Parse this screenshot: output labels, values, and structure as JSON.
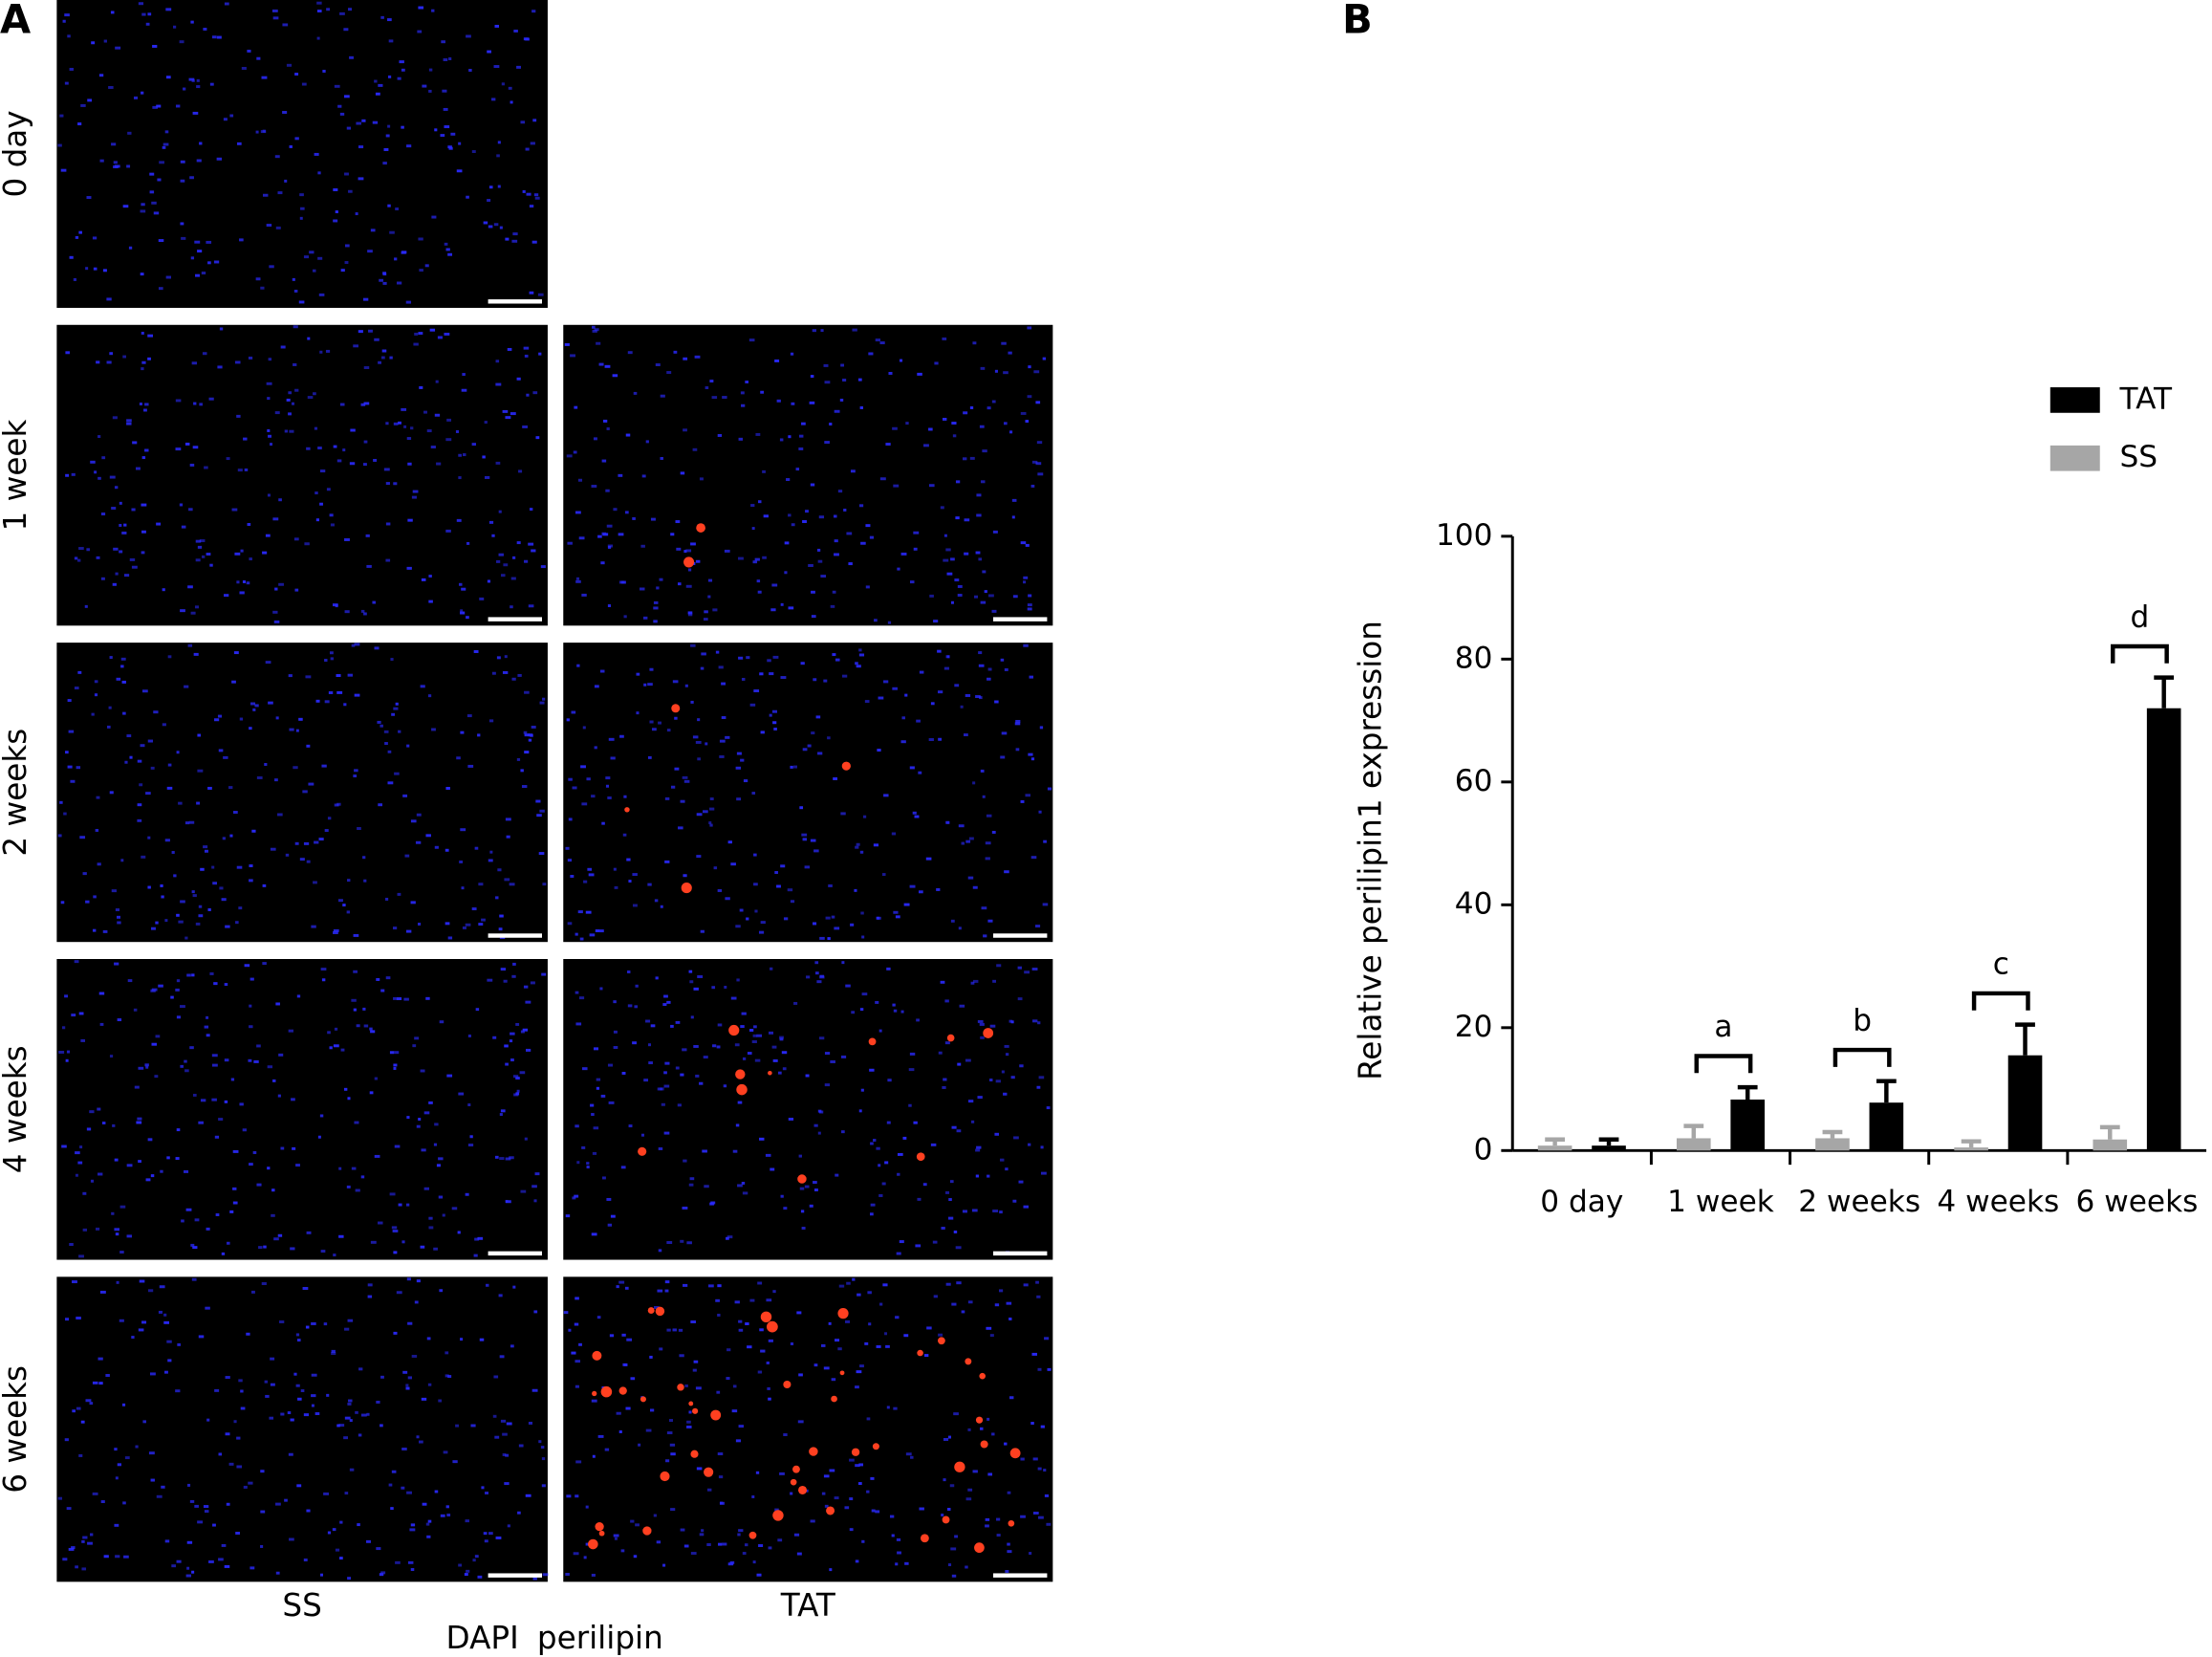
{
  "figure": {
    "panel_a_label": "A",
    "panel_b_label": "B",
    "row_labels": [
      "0 day",
      "1 week",
      "2 weeks",
      "4 weeks",
      "6 weeks"
    ],
    "column_labels": [
      "SS",
      "TAT"
    ],
    "stains": [
      "DAPI",
      "perilipin"
    ]
  },
  "chart_data": {
    "type": "bar",
    "y_label": "Relative perilipin1 expression",
    "categories": [
      "0 day",
      "1 week",
      "2 weeks",
      "4 weeks",
      "6 weeks"
    ],
    "series": [
      {
        "name": "SS",
        "color": "#a6a6a6",
        "values": [
          0.8,
          2,
          2,
          0.5,
          1.8
        ],
        "errors": [
          1,
          2,
          1,
          1,
          2
        ]
      },
      {
        "name": "TAT",
        "color": "#000000",
        "values": [
          0.8,
          8.3,
          7.8,
          15.5,
          72
        ],
        "errors": [
          1,
          2,
          3.5,
          5,
          5
        ]
      }
    ],
    "annotations": [
      null,
      "a",
      "b",
      "c",
      "d"
    ],
    "ylim": [
      0,
      100
    ],
    "yticks": [
      0,
      20,
      40,
      60,
      80,
      100
    ],
    "legend": "upper right"
  }
}
